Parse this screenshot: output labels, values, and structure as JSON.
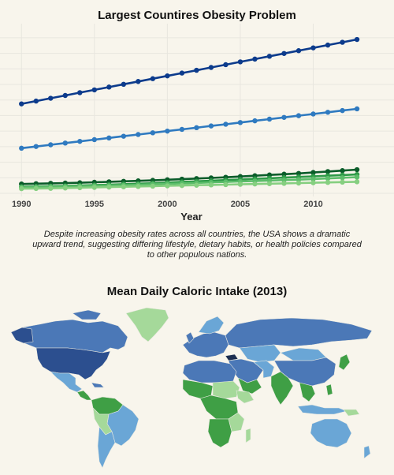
{
  "line_chart": {
    "title": "Largest Countires Obesity Problem",
    "annotation": "Despite increasing obesity rates across all countries, the USA shows a dramatic upward trend, suggesting differing lifestyle, dietary habits, or health policies compared to other populous nations."
  },
  "map_chart": {
    "title": "Mean Daily Caloric Intake (2013)"
  },
  "chart_data": [
    {
      "type": "line",
      "title": "Largest Countires Obesity Problem",
      "xlabel": "Year",
      "ylabel": "",
      "x": [
        1990,
        1991,
        1992,
        1993,
        1994,
        1995,
        1996,
        1997,
        1998,
        1999,
        2000,
        2001,
        2002,
        2003,
        2004,
        2005,
        2006,
        2007,
        2008,
        2009,
        2010,
        2011,
        2012,
        2013
      ],
      "xticks": [
        1990,
        1995,
        2000,
        2005,
        2010
      ],
      "xlim": [
        1989.5,
        2013.7
      ],
      "ylim": [
        0,
        10.5
      ],
      "grid": true,
      "series": [
        {
          "color": "#0c3b8c",
          "values": [
            5.75,
            5.93,
            6.11,
            6.29,
            6.47,
            6.65,
            6.83,
            7.01,
            7.19,
            7.37,
            7.55,
            7.73,
            7.91,
            8.09,
            8.27,
            8.45,
            8.63,
            8.81,
            8.99,
            9.17,
            9.35,
            9.53,
            9.71,
            9.89
          ]
        },
        {
          "color": "#2f7ac0",
          "values": [
            2.9,
            3.01,
            3.12,
            3.23,
            3.34,
            3.45,
            3.56,
            3.67,
            3.78,
            3.89,
            4.0,
            4.11,
            4.22,
            4.33,
            4.44,
            4.55,
            4.66,
            4.77,
            4.88,
            4.99,
            5.1,
            5.21,
            5.32,
            5.43
          ]
        },
        {
          "color": "#0b5d2a",
          "values": [
            0.6,
            0.62,
            0.64,
            0.66,
            0.68,
            0.71,
            0.74,
            0.77,
            0.8,
            0.83,
            0.87,
            0.91,
            0.95,
            0.99,
            1.03,
            1.08,
            1.13,
            1.18,
            1.23,
            1.28,
            1.34,
            1.4,
            1.46,
            1.52
          ]
        },
        {
          "color": "#2e9a48",
          "values": [
            0.42,
            0.44,
            0.46,
            0.48,
            0.5,
            0.53,
            0.56,
            0.59,
            0.62,
            0.65,
            0.69,
            0.73,
            0.77,
            0.81,
            0.85,
            0.89,
            0.93,
            0.97,
            1.01,
            1.05,
            1.09,
            1.13,
            1.17,
            1.21
          ]
        },
        {
          "color": "#5cbd6a",
          "values": [
            0.38,
            0.4,
            0.42,
            0.44,
            0.46,
            0.48,
            0.5,
            0.52,
            0.55,
            0.58,
            0.61,
            0.64,
            0.67,
            0.7,
            0.73,
            0.76,
            0.79,
            0.82,
            0.85,
            0.88,
            0.92,
            0.96,
            1.0,
            1.04
          ]
        },
        {
          "color": "#86cf80",
          "values": [
            0.3,
            0.31,
            0.32,
            0.34,
            0.36,
            0.38,
            0.4,
            0.42,
            0.44,
            0.46,
            0.48,
            0.5,
            0.52,
            0.54,
            0.56,
            0.58,
            0.6,
            0.62,
            0.64,
            0.66,
            0.68,
            0.7,
            0.72,
            0.74
          ]
        }
      ]
    },
    {
      "type": "map",
      "title": "Mean Daily Caloric Intake (2013)",
      "colors": {
        "very_high": "#2c4f8f",
        "high": "#4b78b7",
        "medium": "#6aa6d6",
        "low": "#3f9f45",
        "very_low": "#a5d99a"
      }
    }
  ]
}
